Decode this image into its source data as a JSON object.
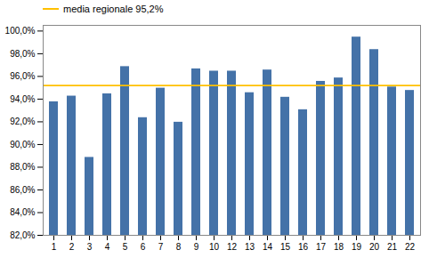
{
  "chart_data": {
    "type": "bar",
    "categories": [
      "1",
      "2",
      "3",
      "4",
      "5",
      "6",
      "7",
      "8",
      "9",
      "10",
      "12",
      "13",
      "14",
      "15",
      "16",
      "17",
      "18",
      "19",
      "20",
      "21",
      "22"
    ],
    "values": [
      0.94,
      0.945,
      0.891,
      0.947,
      0.971,
      0.926,
      0.952,
      0.922,
      0.969,
      0.967,
      0.967,
      0.948,
      0.968,
      0.944,
      0.933,
      0.958,
      0.961,
      0.997,
      0.986,
      0.953,
      0.95
    ],
    "color": "#4472a8",
    "reference_lines": [
      {
        "name": "media regionale 95,2%",
        "value": 0.952,
        "color": "#FFC000"
      }
    ],
    "legend": "upper left",
    "ylim": [
      0.82,
      1.005
    ],
    "yticks": [
      {
        "value": 0.82,
        "label": "82,0%"
      },
      {
        "value": 0.84,
        "label": "84,0%"
      },
      {
        "value": 0.86,
        "label": "86,0%"
      },
      {
        "value": 0.88,
        "label": "88,0%"
      },
      {
        "value": 0.9,
        "label": "90,0%"
      },
      {
        "value": 0.92,
        "label": "92,0%"
      },
      {
        "value": 0.94,
        "label": "94,0%"
      },
      {
        "value": 0.96,
        "label": "96,0%"
      },
      {
        "value": 0.98,
        "label": "98,0%"
      },
      {
        "value": 1.0,
        "label": "100,0%"
      }
    ],
    "grid": false
  }
}
